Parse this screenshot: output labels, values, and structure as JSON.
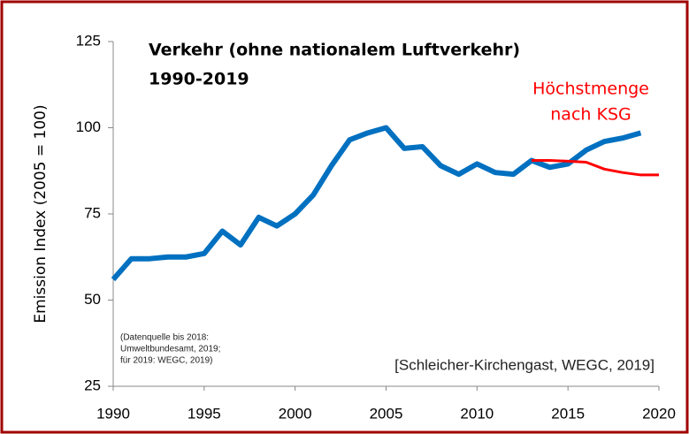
{
  "chart_data": {
    "type": "line",
    "title": [
      "Verkehr (ohne nationalem Luftverkehr)",
      "1990-2019"
    ],
    "y_label": "Emission Index (2005 = 100)",
    "annotation": [
      "Höchstmenge",
      "nach KSG"
    ],
    "source_note": [
      "(Datenquelle bis 2018:",
      "Umweltbundesamt, 2019;",
      "für 2019: WEGC, 2019)"
    ],
    "citation": "[Schleicher-Kirchengast, WEGC, 2019]",
    "x": [
      1990,
      1991,
      1992,
      1993,
      1994,
      1995,
      1996,
      1997,
      1998,
      1999,
      2000,
      2001,
      2002,
      2003,
      2004,
      2005,
      2006,
      2007,
      2008,
      2009,
      2010,
      2011,
      2012,
      2013,
      2014,
      2015,
      2016,
      2017,
      2018,
      2019,
      2020
    ],
    "series": [
      {
        "color": "#0070c0",
        "values": [
          56,
          62,
          62,
          62.5,
          62.5,
          63.5,
          70,
          66,
          74,
          71.5,
          75,
          80.5,
          89,
          96.5,
          98.5,
          100,
          94,
          94.5,
          89,
          86.5,
          89.5,
          87,
          86.5,
          90.5,
          88.5,
          89.5,
          93.5,
          96,
          97,
          98.5,
          null
        ]
      },
      {
        "color": "#ff0000",
        "values": [
          null,
          null,
          null,
          null,
          null,
          null,
          null,
          null,
          null,
          null,
          null,
          null,
          null,
          null,
          null,
          null,
          null,
          null,
          null,
          null,
          null,
          null,
          null,
          90.5,
          90.5,
          90.3,
          90,
          88,
          87,
          86.3,
          86.3
        ]
      }
    ],
    "xlim": [
      1990,
      2020
    ],
    "ylim": [
      25,
      125
    ],
    "xticks": [
      1990,
      1995,
      2000,
      2005,
      2010,
      2015,
      2020
    ],
    "yticks": [
      25,
      50,
      75,
      100,
      125
    ],
    "border_color": "#a00000"
  }
}
